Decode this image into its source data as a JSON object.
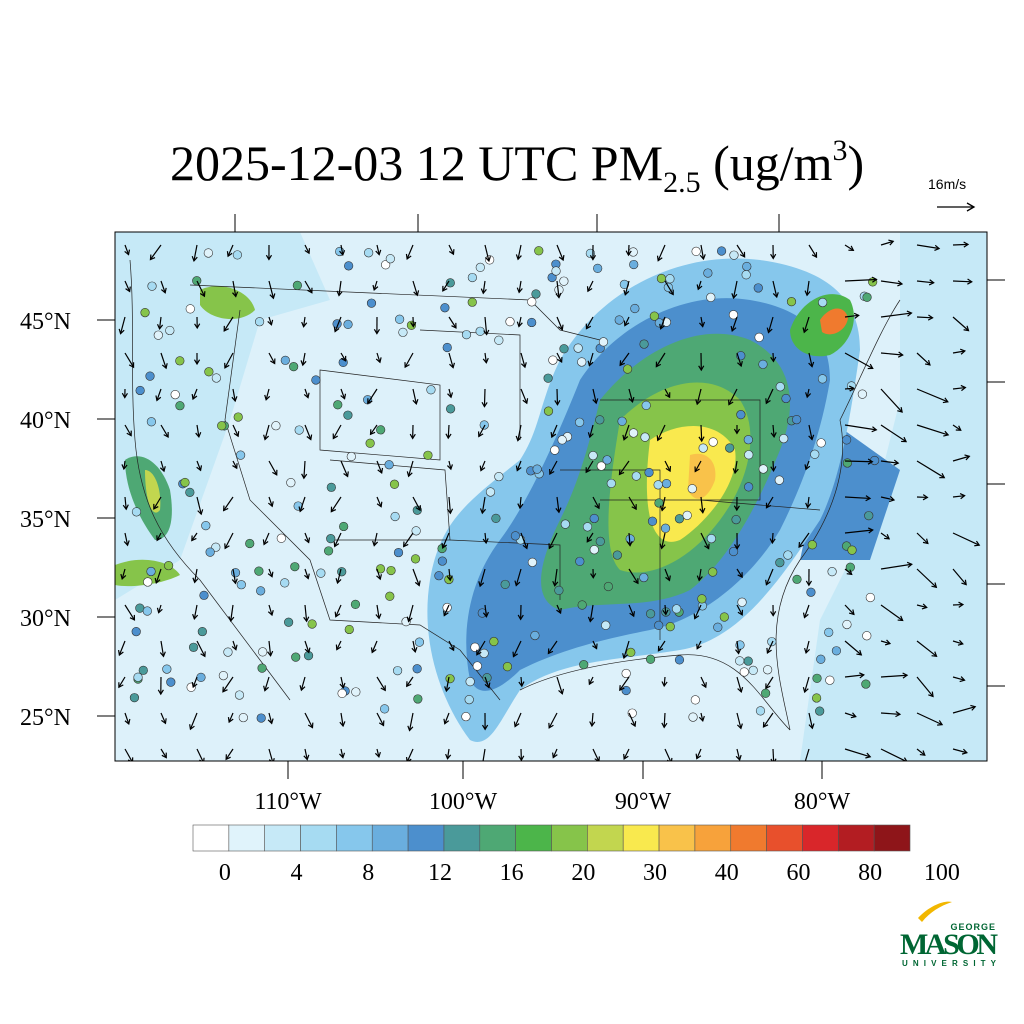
{
  "title": {
    "main": "2025-12-03 12 UTC PM",
    "subscript": "2.5",
    "units_open": " (ug/m",
    "superscript": "3",
    "units_close": ")"
  },
  "wind_reference": "16m/s",
  "latitude_labels": [
    "45°N",
    "40°N",
    "35°N",
    "30°N",
    "25°N"
  ],
  "longitude_labels": [
    "110°W",
    "100°W",
    "90°W",
    "80°W"
  ],
  "colorbar": {
    "labels": [
      "0",
      "4",
      "8",
      "12",
      "16",
      "20",
      "30",
      "40",
      "60",
      "80",
      "100"
    ],
    "colors": [
      "#ffffff",
      "#e0f3fb",
      "#c6e9f7",
      "#a6dbf2",
      "#86c7ec",
      "#6aaede",
      "#4c8fcd",
      "#4a9a9a",
      "#4ea874",
      "#4cb54a",
      "#86c44a",
      "#c2d64f",
      "#f9e94e",
      "#f9c24a",
      "#f7a23b",
      "#f07a2e",
      "#e8502c",
      "#d9262a",
      "#b31d22",
      "#8e1519"
    ]
  },
  "logo": {
    "top": "GEORGE",
    "main": "MASON",
    "bottom": "UNIVERSITY"
  }
}
